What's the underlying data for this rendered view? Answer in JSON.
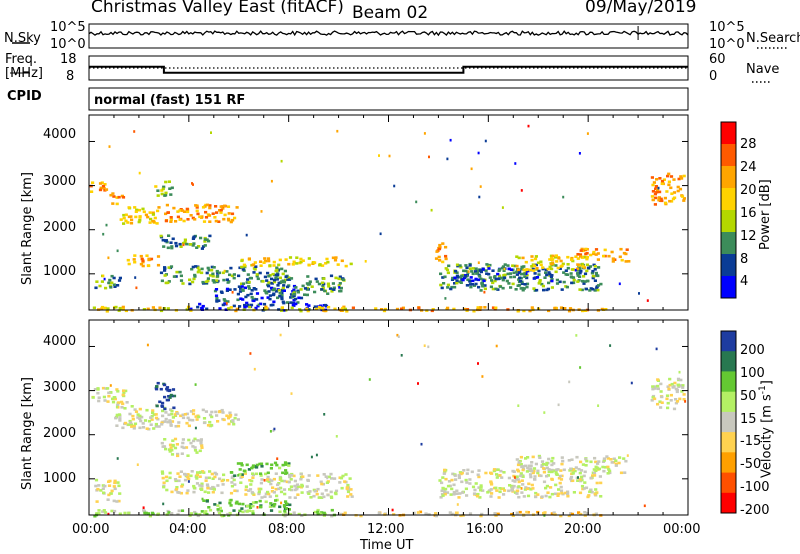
{
  "header": {
    "station": "Christmas Valley East (fitACF)",
    "beam": "Beam 02",
    "date": "09/May/2019"
  },
  "top_panel": {
    "nsky_label": "N.Sky",
    "nsky_ticks": [
      "10^5",
      "10^0"
    ],
    "nsearch_label": "N.Search",
    "nsearch_ticks": [
      "10^5",
      "10^0"
    ],
    "freq_label_1": "Freq.",
    "freq_label_2": "[MHz]",
    "freq_ticks": [
      "18",
      "8"
    ],
    "nave_label": "Nave",
    "nave_ticks": [
      "60",
      "0"
    ],
    "cpid_label": "CPID",
    "cpid_text": "normal (fast) 151 RF"
  },
  "chart_data": [
    {
      "type": "heatmap",
      "title": "Power",
      "ylabel": "Slant Range [km]",
      "ylim": [
        180,
        4600
      ],
      "yticks": [
        "4000",
        "3000",
        "2000",
        "1000"
      ],
      "xlim_hours": [
        0,
        24
      ],
      "colorbar_label": "Power [dB]",
      "colorbar_ticks": [
        "28",
        "24",
        "20",
        "16",
        "12",
        "8",
        "4"
      ],
      "colorbar_colors": [
        "#ff0000",
        "#ff5a00",
        "#ffa500",
        "#ffd200",
        "#b4d700",
        "#3c8c5a",
        "#0a3c96",
        "#0000ff"
      ],
      "blobs": [
        {
          "t0": 0.0,
          "t1": 0.8,
          "r0": 2850,
          "r1": 3100,
          "level": 2
        },
        {
          "t0": 0.8,
          "t1": 1.4,
          "r0": 2600,
          "r1": 2850,
          "level": 2
        },
        {
          "t0": 1.2,
          "t1": 2.8,
          "r0": 2150,
          "r1": 2550,
          "level": 3
        },
        {
          "t0": 2.6,
          "t1": 3.3,
          "r0": 2800,
          "r1": 3150,
          "level": 4
        },
        {
          "t0": 2.8,
          "t1": 4.8,
          "r0": 1550,
          "r1": 1900,
          "level": 5
        },
        {
          "t0": 3.0,
          "t1": 6.0,
          "r0": 2200,
          "r1": 2600,
          "level": 2
        },
        {
          "t0": 0.2,
          "t1": 1.2,
          "r0": 700,
          "r1": 1000,
          "level": 5
        },
        {
          "t0": 1.5,
          "t1": 2.8,
          "r0": 1200,
          "r1": 1450,
          "level": 2
        },
        {
          "t0": 2.8,
          "t1": 8.0,
          "r0": 800,
          "r1": 1200,
          "level": 5
        },
        {
          "t0": 5.0,
          "t1": 8.5,
          "r0": 350,
          "r1": 750,
          "level": 6
        },
        {
          "t0": 7.0,
          "t1": 10.2,
          "r0": 550,
          "r1": 1000,
          "level": 5
        },
        {
          "t0": 6.0,
          "t1": 10.5,
          "r0": 1200,
          "r1": 1400,
          "level": 3
        },
        {
          "t0": 4.0,
          "t1": 9.5,
          "r0": 200,
          "r1": 350,
          "level": 7
        },
        {
          "t0": 0.0,
          "t1": 10.5,
          "r0": 180,
          "r1": 280,
          "level": 3
        },
        {
          "t0": 10.5,
          "t1": 20.8,
          "r0": 180,
          "r1": 270,
          "level": 2
        },
        {
          "t0": 14.0,
          "t1": 20.5,
          "r0": 650,
          "r1": 1250,
          "level": 5
        },
        {
          "t0": 14.5,
          "t1": 18.5,
          "r0": 850,
          "r1": 1150,
          "level": 6
        },
        {
          "t0": 17.0,
          "t1": 19.8,
          "r0": 1100,
          "r1": 1450,
          "level": 3
        },
        {
          "t0": 19.5,
          "t1": 21.6,
          "r0": 1300,
          "r1": 1600,
          "level": 2
        },
        {
          "t0": 13.8,
          "t1": 14.3,
          "r0": 1300,
          "r1": 1750,
          "level": 2
        },
        {
          "t0": 22.5,
          "t1": 23.8,
          "r0": 2600,
          "r1": 3300,
          "level": 2
        }
      ]
    },
    {
      "type": "heatmap",
      "title": "Velocity",
      "ylabel": "Slant Range [km]",
      "ylim": [
        180,
        4600
      ],
      "yticks": [
        "4000",
        "3000",
        "2000",
        "1000"
      ],
      "xlabel": "Time UT",
      "xticks": [
        "00:00",
        "04:00",
        "08:00",
        "12:00",
        "16:00",
        "20:00",
        "00:00"
      ],
      "colorbar_label": "Velocity [m s",
      "colorbar_unit_sup": "-1",
      "colorbar_ticks": [
        "200",
        "100",
        "50",
        "15",
        "-15",
        "-50",
        "-100",
        "-200"
      ],
      "colorbar_colors": [
        "#1e3ca0",
        "#287850",
        "#64c832",
        "#b4f064",
        "#c8c8be",
        "#ffd250",
        "#ffa000",
        "#ff5000",
        "#ff0000"
      ],
      "blobs": [
        {
          "t0": 0.0,
          "t1": 1.5,
          "r0": 2700,
          "r1": 3100,
          "level": 4
        },
        {
          "t0": 1.0,
          "t1": 3.0,
          "r0": 2150,
          "r1": 2700,
          "level": 4
        },
        {
          "t0": 3.0,
          "t1": 6.0,
          "r0": 2200,
          "r1": 2600,
          "level": 4
        },
        {
          "t0": 2.6,
          "t1": 3.4,
          "r0": 2600,
          "r1": 3200,
          "level": 0
        },
        {
          "t0": 2.8,
          "t1": 4.5,
          "r0": 1550,
          "r1": 1950,
          "level": 4
        },
        {
          "t0": 0.2,
          "t1": 1.2,
          "r0": 500,
          "r1": 1000,
          "level": 4
        },
        {
          "t0": 2.8,
          "t1": 6.0,
          "r0": 700,
          "r1": 1200,
          "level": 4
        },
        {
          "t0": 6.0,
          "t1": 10.5,
          "r0": 600,
          "r1": 1150,
          "level": 4
        },
        {
          "t0": 5.5,
          "t1": 8.0,
          "r0": 1100,
          "r1": 1400,
          "level": 2
        },
        {
          "t0": 14.0,
          "t1": 20.5,
          "r0": 600,
          "r1": 1250,
          "level": 4
        },
        {
          "t0": 17.0,
          "t1": 21.5,
          "r0": 1150,
          "r1": 1550,
          "level": 4
        },
        {
          "t0": 0.0,
          "t1": 10.0,
          "r0": 180,
          "r1": 320,
          "level": 3
        },
        {
          "t0": 10.0,
          "t1": 20.8,
          "r0": 180,
          "r1": 280,
          "level": 5
        },
        {
          "t0": 4.5,
          "t1": 8.0,
          "r0": 300,
          "r1": 550,
          "level": 2
        },
        {
          "t0": 22.5,
          "t1": 23.8,
          "r0": 2600,
          "r1": 3300,
          "level": 4
        }
      ]
    }
  ],
  "time_series": {
    "nsky_level": 0.62,
    "freq_segments": [
      {
        "t0": 0,
        "t1": 3.0,
        "mhz": 13.5
      },
      {
        "t0": 3.0,
        "t1": 15.0,
        "mhz": 11.0
      },
      {
        "t0": 15.0,
        "t1": 24,
        "mhz": 13.5
      }
    ],
    "nave_level": 0.5
  }
}
